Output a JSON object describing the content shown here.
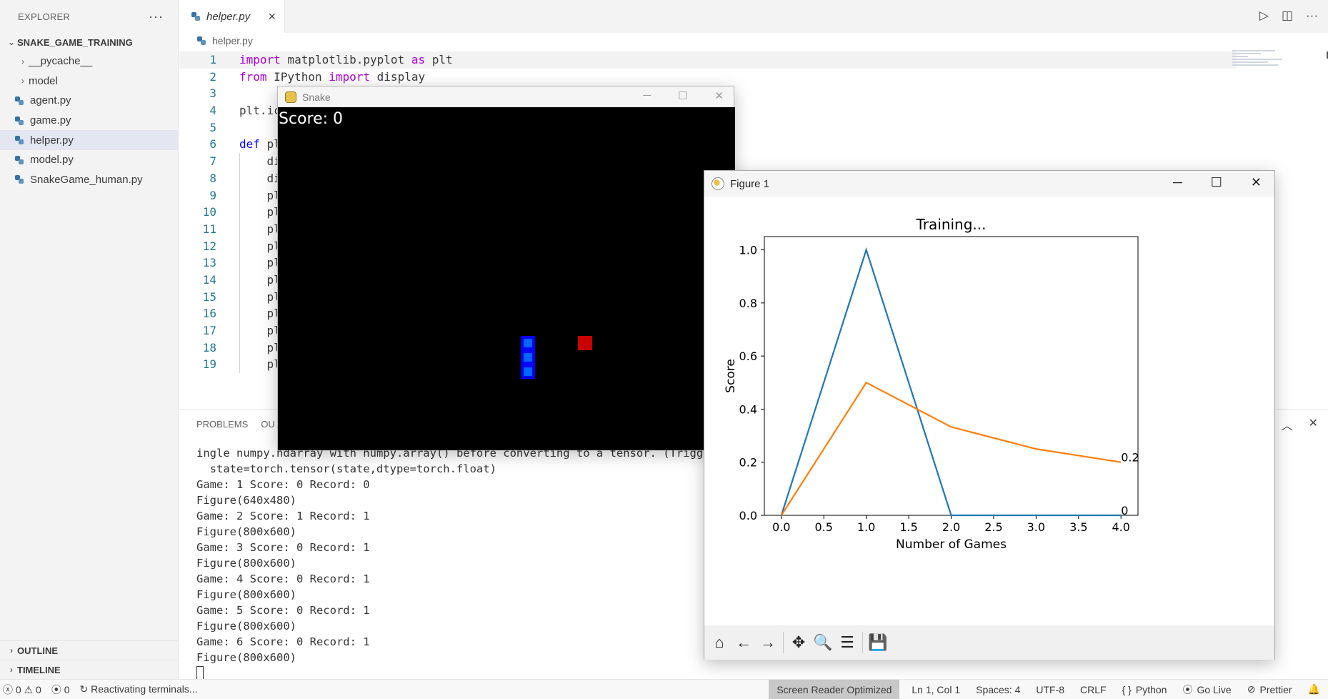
{
  "explorer": {
    "title": "EXPLORER",
    "more": "···",
    "root_folder": "SNAKE_GAME_TRAINING",
    "items": [
      {
        "label": "__pycache__",
        "type": "folder"
      },
      {
        "label": "model",
        "type": "folder"
      },
      {
        "label": "agent.py",
        "type": "file"
      },
      {
        "label": "game.py",
        "type": "file"
      },
      {
        "label": "helper.py",
        "type": "file",
        "active": true
      },
      {
        "label": "model.py",
        "type": "file"
      },
      {
        "label": "SnakeGame_human.py",
        "type": "file"
      }
    ],
    "outline": "OUTLINE",
    "timeline": "TIMELINE"
  },
  "editor": {
    "tab_label": "helper.py",
    "breadcrumb": "helper.py",
    "line_numbers": [
      "1",
      "2",
      "3",
      "4",
      "5",
      "6",
      "7",
      "8",
      "9",
      "10",
      "11",
      "12",
      "13",
      "14",
      "15",
      "16",
      "17",
      "18",
      "19"
    ],
    "lines": [
      "import matplotlib.pyplot as plt",
      "from IPython import display",
      "",
      "plt.ic",
      "",
      "def pl",
      "    di",
      "    di",
      "    pl",
      "    pl",
      "    pl",
      "    pl",
      "    pl",
      "    pl",
      "    pl",
      "    pl",
      "    pl",
      "    pl",
      "    pl"
    ]
  },
  "panel": {
    "tabs": [
      "PROBLEMS",
      "OU"
    ],
    "terminal_lines": [
      "ingle numpy.ndarray with numpy.array() before converting to a tensor. (Triggere",
      "  state=torch.tensor(state,dtype=torch.float)",
      "Game: 1 Score: 0 Record: 0",
      "Figure(640x480)",
      "Game: 2 Score: 1 Record: 1",
      "Figure(800x600)",
      "Game: 3 Score: 0 Record: 1",
      "Figure(800x600)",
      "Game: 4 Score: 0 Record: 1",
      "Figure(800x600)",
      "Game: 5 Score: 0 Record: 1",
      "Figure(800x600)",
      "Game: 6 Score: 0 Record: 1",
      "Figure(800x600)"
    ]
  },
  "statusbar": {
    "errors": "0",
    "warnings": "0",
    "ports": "0",
    "activity": "Reactivating terminals...",
    "screen_reader": "Screen Reader Optimized",
    "position": "Ln 1, Col 1",
    "spaces": "Spaces: 4",
    "encoding": "UTF-8",
    "eol": "CRLF",
    "language": "Python",
    "golive": "Go Live",
    "prettier": "Prettier"
  },
  "snake_window": {
    "title": "Snake",
    "score_text": "Score: 0",
    "colors": {
      "background": "#000000",
      "snake_outer": "#0000ff",
      "snake_inner": "#0064ff",
      "food": "#c80000"
    }
  },
  "figure_window": {
    "title": "Figure 1"
  },
  "chart_data": {
    "type": "line",
    "title": "Training...",
    "xlabel": "Number of Games",
    "ylabel": "Score",
    "xlim": [
      -0.2,
      4.2
    ],
    "ylim": [
      0.0,
      1.05
    ],
    "xticks": [
      "0.0",
      "0.5",
      "1.0",
      "1.5",
      "2.0",
      "2.5",
      "3.0",
      "3.5",
      "4.0"
    ],
    "yticks": [
      "0.0",
      "0.2",
      "0.4",
      "0.6",
      "0.8",
      "1.0"
    ],
    "x": [
      0,
      1,
      2,
      3,
      4
    ],
    "series": [
      {
        "values": [
          0,
          1,
          0,
          0,
          0
        ],
        "color": "#1f77b4",
        "end_label": "0"
      },
      {
        "values": [
          0,
          0.5,
          0.333,
          0.25,
          0.2
        ],
        "color": "#ff7f0e",
        "end_label": "0.2"
      }
    ],
    "grid": false
  }
}
